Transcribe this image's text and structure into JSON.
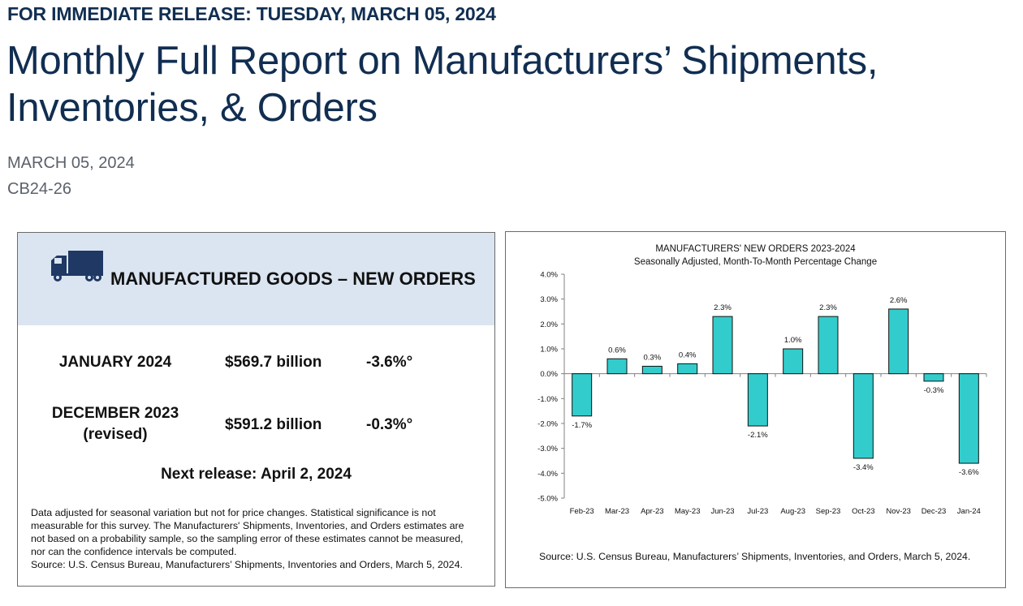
{
  "header": {
    "release_line": "FOR IMMEDIATE RELEASE: TUESDAY, MARCH 05, 2024",
    "title": "Monthly Full Report on Manufacturers’ Shipments, Inventories, & Orders",
    "date": "MARCH 05, 2024",
    "release_code": "CB24-26"
  },
  "summary": {
    "title": "MANUFACTURED GOODS – NEW ORDERS",
    "icon": "truck-icon",
    "rows": [
      {
        "period": "JANUARY 2024",
        "period_note": "",
        "amount": "$569.7 billion",
        "change": "-3.6%°"
      },
      {
        "period": "DECEMBER 2023",
        "period_note": "(revised)",
        "amount": "$591.2 billion",
        "change": "-0.3%°"
      }
    ],
    "next_release": "Next release: April 2, 2024",
    "footnote_lines": [
      "Data adjusted for seasonal variation but not for price changes. Statistical significance is not",
      "measurable for this survey.  The Manufacturers' Shipments, Inventories, and Orders estimates are",
      "not based on a probability sample, so the sampling error of these estimates cannot be measured,",
      "nor can the confidence intervals be computed."
    ],
    "source": "Source: U.S. Census Bureau, Manufacturers’ Shipments, Inventories and Orders, March 5, 2024."
  },
  "chart_data": {
    "type": "bar",
    "title": "MANUFACTURERS' NEW ORDERS 2023-2024",
    "subtitle": "Seasonally Adjusted,  Month-To-Month Percentage Change",
    "categories": [
      "Feb-23",
      "Mar-23",
      "Apr-23",
      "May-23",
      "Jun-23",
      "Jul-23",
      "Aug-23",
      "Sep-23",
      "Oct-23",
      "Nov-23",
      "Dec-23",
      "Jan-24"
    ],
    "values": [
      -1.7,
      0.6,
      0.3,
      0.4,
      2.3,
      -2.1,
      1.0,
      2.3,
      -3.4,
      2.6,
      -0.3,
      -3.6
    ],
    "data_labels": [
      "-1.7%",
      "0.6%",
      "0.3%",
      "0.4%",
      "2.3%",
      "-2.1%",
      "1.0%",
      "2.3%",
      "-3.4%",
      "2.6%",
      "-0.3%",
      "-3.6%"
    ],
    "ylim": [
      -5.0,
      4.0
    ],
    "yticks": [
      4.0,
      3.0,
      2.0,
      1.0,
      0.0,
      -1.0,
      -2.0,
      -3.0,
      -4.0,
      -5.0
    ],
    "ytick_labels": [
      "4.0%",
      "3.0%",
      "2.0%",
      "1.0%",
      "0.0%",
      "-1.0%",
      "-2.0%",
      "-3.0%",
      "-4.0%",
      "-5.0%"
    ],
    "bar_color": "#33cccc",
    "grid": false,
    "xlabel": "",
    "ylabel": "",
    "source": "Source: U.S. Census Bureau, Manufacturers’ Shipments, Inventories, and Orders, March 5, 2024."
  }
}
